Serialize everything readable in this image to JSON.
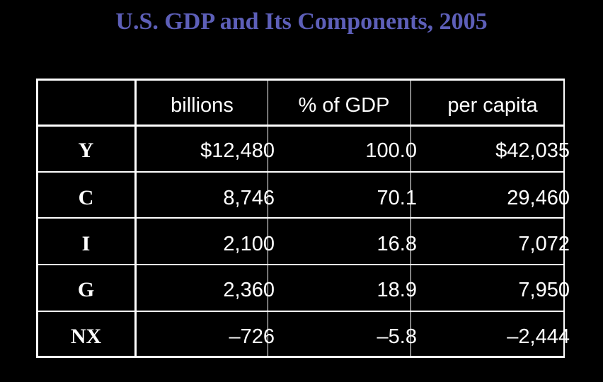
{
  "title": "U.S. GDP and Its Components, 2005",
  "table": {
    "columns": [
      "",
      "billions",
      "% of GDP",
      "per capita"
    ],
    "rows": [
      {
        "label": "Y",
        "billions": "$12,480",
        "pct": "100.0",
        "per_capita": "$42,035"
      },
      {
        "label": "C",
        "billions": "8,746",
        "pct": "70.1",
        "per_capita": "29,460"
      },
      {
        "label": "I",
        "billions": "2,100",
        "pct": "16.8",
        "per_capita": "7,072"
      },
      {
        "label": "G",
        "billions": "2,360",
        "pct": "18.9",
        "per_capita": "7,950"
      },
      {
        "label": "NX",
        "billions": "–726",
        "pct": "–5.8",
        "per_capita": "–2,444"
      }
    ]
  },
  "colors": {
    "background": "#000000",
    "title": "#5d5fb8",
    "text": "#ffffff",
    "grid": "#ffffff"
  }
}
